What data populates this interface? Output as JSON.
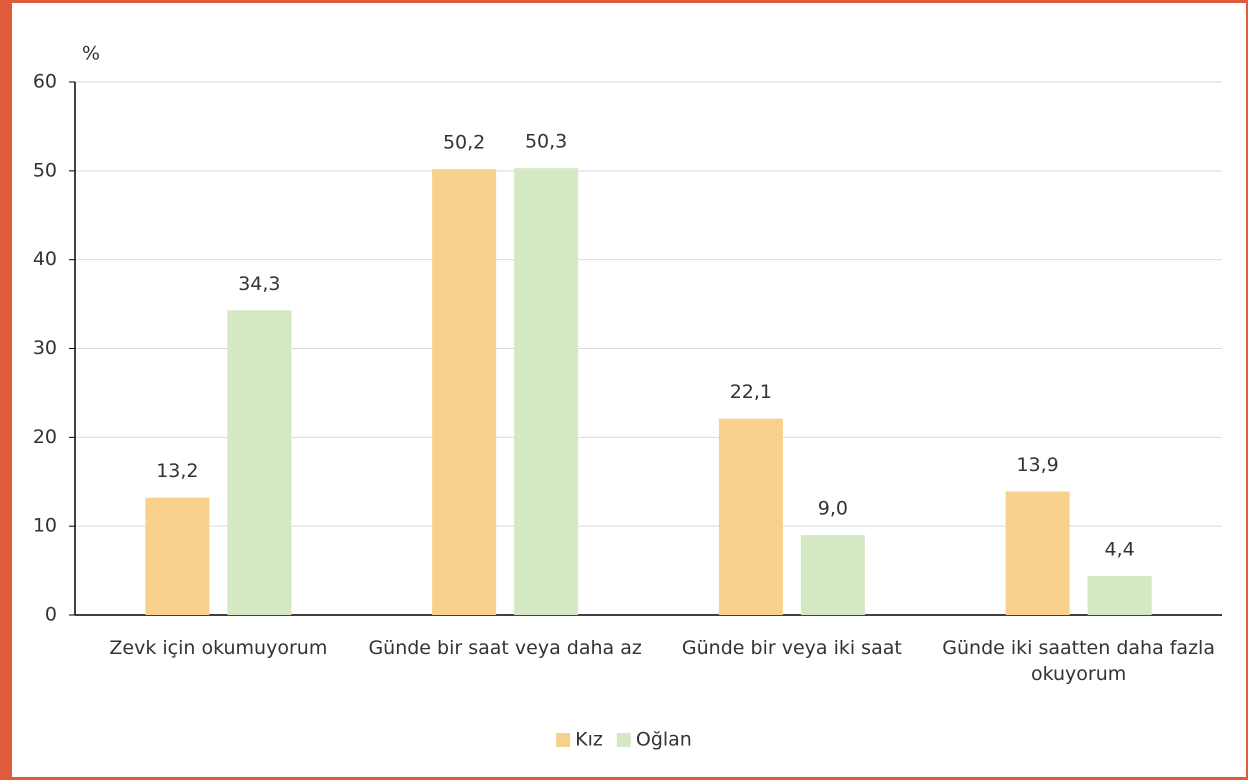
{
  "chart_data": {
    "type": "bar",
    "y_label": "%",
    "categories": [
      "Zevk için okumuyorum",
      "Günde bir saat veya daha az",
      "Günde bir veya iki saat",
      "Günde iki saatten daha fazla okuyorum"
    ],
    "series": [
      {
        "name": "Kız",
        "color": "#f8d18e",
        "values": [
          13.2,
          50.2,
          22.1,
          13.9
        ],
        "value_labels": [
          "13,2",
          "50,2",
          "22,1",
          "13,9"
        ]
      },
      {
        "name": "Oğlan",
        "color": "#d5e8c4",
        "values": [
          34.3,
          50.3,
          9.0,
          4.4
        ],
        "value_labels": [
          "34,3",
          "50,3",
          "9,0",
          "4,4"
        ]
      }
    ],
    "ylim": [
      0,
      60
    ],
    "yticks": [
      0,
      10,
      20,
      30,
      40,
      50,
      60
    ],
    "grid": true,
    "legend": "bottom"
  }
}
